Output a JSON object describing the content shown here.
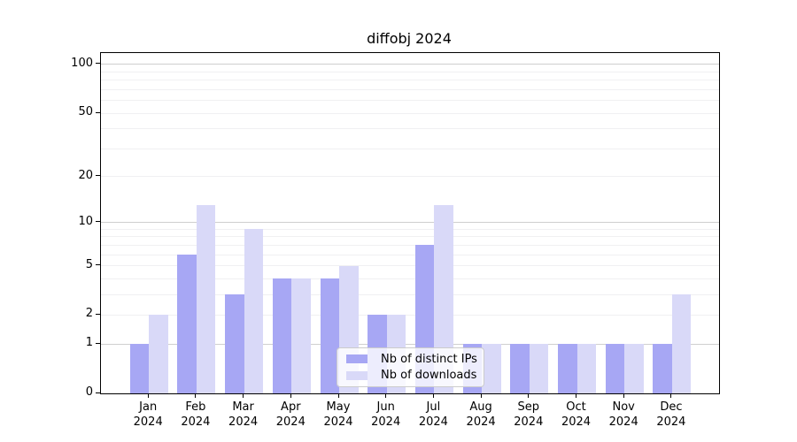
{
  "chart_data": {
    "type": "bar",
    "title": "diffobj 2024",
    "categories": [
      "Jan 2024",
      "Feb 2024",
      "Mar 2024",
      "Apr 2024",
      "May 2024",
      "Jun 2024",
      "Jul 2024",
      "Aug 2024",
      "Sep 2024",
      "Oct 2024",
      "Nov 2024",
      "Dec 2024"
    ],
    "series": [
      {
        "name": "Nb of distinct IPs",
        "color": "#a7a7f4",
        "values": [
          1,
          6,
          3,
          4,
          4,
          2,
          7,
          1,
          1,
          1,
          1,
          1
        ]
      },
      {
        "name": "Nb of downloads",
        "color": "#d9d9f8",
        "values": [
          2,
          13,
          9,
          4,
          5,
          2,
          13,
          1,
          1,
          1,
          1,
          3
        ]
      }
    ],
    "xlabel": "",
    "ylabel": "",
    "yscale": "log1p",
    "ylim": [
      0,
      118
    ],
    "ytick_labels": [
      100,
      50,
      20,
      10,
      5,
      2,
      1,
      0
    ],
    "grid": {
      "major_lines": [
        1,
        10,
        100
      ],
      "minor_lines": [
        2,
        3,
        4,
        5,
        6,
        7,
        8,
        9,
        20,
        30,
        40,
        50,
        60,
        70,
        80,
        90
      ],
      "major_color": "#cfcfcf",
      "minor_color": "#f0f0f2"
    },
    "legend_position": "lower center-right inside plot"
  }
}
